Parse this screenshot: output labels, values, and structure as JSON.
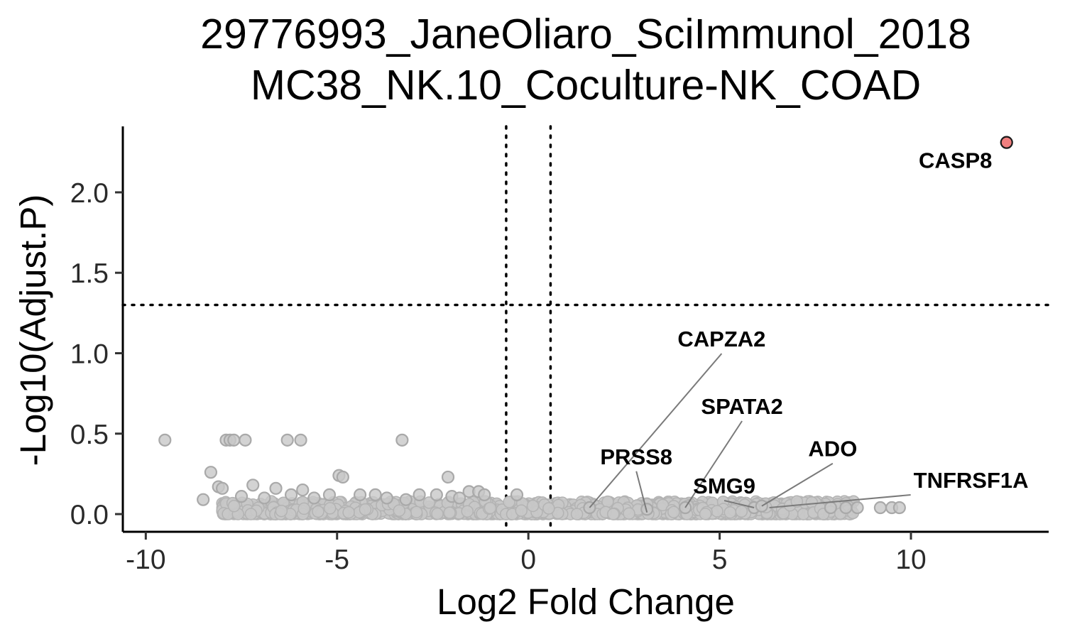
{
  "chart_data": {
    "type": "scatter",
    "title": "29776993_JaneOliaro_SciImmunol_2018",
    "subtitle": "MC38_NK.10_Coculture-NK_COAD",
    "xlabel": "Log2 Fold Change",
    "ylabel": "-Log10(Adjust.P)",
    "xlim": [
      -10.6,
      13.6
    ],
    "ylim": [
      -0.11,
      2.41
    ],
    "x_ticks": [
      -10,
      -5,
      0,
      5,
      10
    ],
    "x_tick_labels": [
      "-10",
      "-5",
      "0",
      "5",
      "10"
    ],
    "y_ticks": [
      0.0,
      0.5,
      1.0,
      1.5,
      2.0
    ],
    "y_tick_labels": [
      "0.0",
      "0.5",
      "1.0",
      "1.5",
      "2.0"
    ],
    "grid": false,
    "legend": "none",
    "thresholds": {
      "x": [
        -0.58,
        0.58
      ],
      "y": 1.3
    },
    "colors": {
      "not_significant": "#c8c8c8",
      "significant": "#f07f7f",
      "outline": "#1a1a1a"
    },
    "series": [
      {
        "significant": false,
        "points": [
          [
            -9.5,
            0.46
          ],
          [
            -7.9,
            0.46
          ],
          [
            -7.8,
            0.46
          ],
          [
            -7.7,
            0.46
          ],
          [
            -7.4,
            0.46
          ],
          [
            -6.3,
            0.46
          ],
          [
            -5.95,
            0.46
          ],
          [
            -3.3,
            0.46
          ],
          [
            -8.3,
            0.26
          ],
          [
            -4.95,
            0.24
          ],
          [
            -4.85,
            0.23
          ],
          [
            -2.1,
            0.23
          ],
          [
            -8.1,
            0.17
          ],
          [
            -8.0,
            0.16
          ],
          [
            -7.2,
            0.18
          ],
          [
            -6.6,
            0.16
          ],
          [
            -5.9,
            0.15
          ],
          [
            -1.55,
            0.14
          ],
          [
            -1.3,
            0.14
          ],
          [
            -1.15,
            0.12
          ],
          [
            -0.3,
            0.12
          ],
          [
            -5.2,
            0.12
          ],
          [
            -4.4,
            0.12
          ],
          [
            -4.0,
            0.12
          ],
          [
            -2.85,
            0.12
          ],
          [
            -2.4,
            0.12
          ],
          [
            -2.0,
            0.11
          ],
          [
            -8.5,
            0.09
          ],
          [
            -7.5,
            0.11
          ],
          [
            -6.9,
            0.1
          ],
          [
            -6.2,
            0.12
          ],
          [
            -5.6,
            0.1
          ],
          [
            -3.7,
            0.1
          ],
          [
            -3.2,
            0.09
          ],
          [
            -1.8,
            0.1
          ],
          [
            9.2,
            0.04
          ],
          [
            9.5,
            0.04
          ],
          [
            9.7,
            0.04
          ],
          [
            8.6,
            0.04
          ],
          [
            8.3,
            0.04
          ],
          [
            7.9,
            0.04
          ],
          [
            1.6,
            0.04
          ],
          [
            3.1,
            0.03
          ],
          [
            4.1,
            0.04
          ],
          [
            5.9,
            0.04
          ],
          [
            6.1,
            0.05
          ]
        ],
        "band": {
          "x_start": -8.0,
          "x_end": 8.5,
          "y_min": 0.0,
          "y_max": 0.08
        }
      },
      {
        "significant": true,
        "points": [
          [
            12.5,
            2.31
          ]
        ]
      }
    ],
    "annotations": [
      {
        "label": "CASP8",
        "x": 12.5,
        "y": 2.31
      },
      {
        "label": "CAPZA2",
        "x": 1.6,
        "y": 0.04
      },
      {
        "label": "PRSS8",
        "x": 3.1,
        "y": 0.01
      },
      {
        "label": "SPATA2",
        "x": 4.1,
        "y": 0.04
      },
      {
        "label": "SMG9",
        "x": 5.9,
        "y": 0.04
      },
      {
        "label": "ADO",
        "x": 6.1,
        "y": 0.05
      },
      {
        "label": "TNFRSF1A",
        "x": 6.3,
        "y": 0.04
      }
    ]
  }
}
